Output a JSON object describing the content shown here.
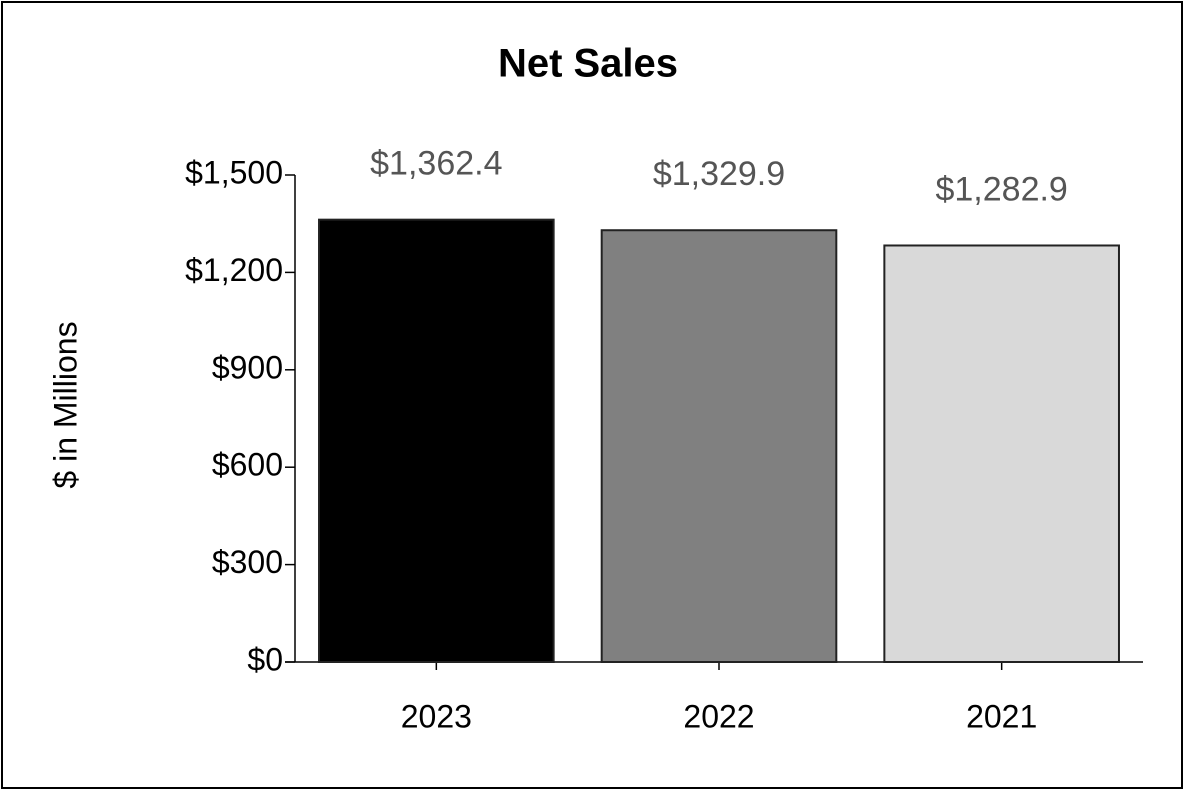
{
  "chart_data": {
    "type": "bar",
    "title": "Net Sales",
    "ylabel": "$ in Millions",
    "categories": [
      "2023",
      "2022",
      "2021"
    ],
    "values": [
      1362.4,
      1329.9,
      1282.9
    ],
    "value_labels": [
      "$1,362.4",
      "$1,329.9",
      "$1,282.9"
    ],
    "colors": [
      "#000000",
      "#808080",
      "#d9d9d9"
    ],
    "ylim": [
      0,
      1500
    ],
    "yticks": [
      {
        "value": 0,
        "label": "$0"
      },
      {
        "value": 300,
        "label": "$300"
      },
      {
        "value": 600,
        "label": "$600"
      },
      {
        "value": 900,
        "label": "$900"
      },
      {
        "value": 1200,
        "label": "$1,200"
      },
      {
        "value": 1500,
        "label": "$1,500"
      }
    ]
  }
}
